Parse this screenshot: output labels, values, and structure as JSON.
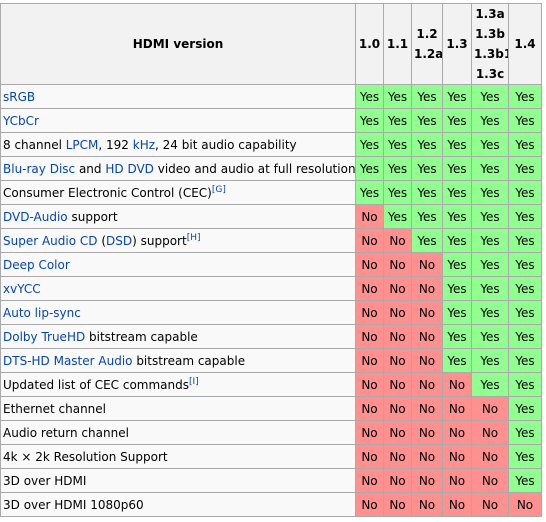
{
  "header": {
    "feature_label": "HDMI version",
    "versions": [
      [
        "1.0"
      ],
      [
        "1.1"
      ],
      [
        "1.2",
        "1.2a"
      ],
      [
        "1.3"
      ],
      [
        "1.3a",
        "1.3b",
        "1.3b1",
        "1.3c"
      ],
      [
        "1.4"
      ]
    ]
  },
  "colors": {
    "yes": "#90ff90",
    "no": "#ff9090",
    "link": "#0645ad"
  },
  "rows": [
    {
      "parts": [
        {
          "t": "sRGB",
          "link": true
        }
      ],
      "values": [
        "Yes",
        "Yes",
        "Yes",
        "Yes",
        "Yes",
        "Yes"
      ]
    },
    {
      "parts": [
        {
          "t": "YCbCr",
          "link": true
        }
      ],
      "values": [
        "Yes",
        "Yes",
        "Yes",
        "Yes",
        "Yes",
        "Yes"
      ]
    },
    {
      "parts": [
        {
          "t": "8 channel "
        },
        {
          "t": "LPCM",
          "link": true
        },
        {
          "t": ", 192 "
        },
        {
          "t": "kHz",
          "link": true
        },
        {
          "t": ", 24 bit audio capability"
        }
      ],
      "values": [
        "Yes",
        "Yes",
        "Yes",
        "Yes",
        "Yes",
        "Yes"
      ]
    },
    {
      "parts": [
        {
          "t": "Blu-ray Disc",
          "link": true
        },
        {
          "t": " and "
        },
        {
          "t": "HD DVD",
          "link": true
        },
        {
          "t": " video and audio at full resolution"
        },
        {
          "t": "[F]",
          "sup": true
        }
      ],
      "values": [
        "Yes",
        "Yes",
        "Yes",
        "Yes",
        "Yes",
        "Yes"
      ]
    },
    {
      "parts": [
        {
          "t": "Consumer Electronic Control (CEC)"
        },
        {
          "t": "[G]",
          "sup": true
        }
      ],
      "values": [
        "Yes",
        "Yes",
        "Yes",
        "Yes",
        "Yes",
        "Yes"
      ]
    },
    {
      "parts": [
        {
          "t": "DVD-Audio",
          "link": true
        },
        {
          "t": " support"
        }
      ],
      "values": [
        "No",
        "Yes",
        "Yes",
        "Yes",
        "Yes",
        "Yes"
      ]
    },
    {
      "parts": [
        {
          "t": "Super Audio CD",
          "link": true
        },
        {
          "t": " ("
        },
        {
          "t": "DSD",
          "link": true
        },
        {
          "t": ") support"
        },
        {
          "t": "[H]",
          "sup": true
        }
      ],
      "values": [
        "No",
        "No",
        "Yes",
        "Yes",
        "Yes",
        "Yes"
      ]
    },
    {
      "parts": [
        {
          "t": "Deep Color",
          "link": true
        }
      ],
      "values": [
        "No",
        "No",
        "No",
        "Yes",
        "Yes",
        "Yes"
      ]
    },
    {
      "parts": [
        {
          "t": "xvYCC",
          "link": true
        }
      ],
      "values": [
        "No",
        "No",
        "No",
        "Yes",
        "Yes",
        "Yes"
      ]
    },
    {
      "parts": [
        {
          "t": "Auto lip-sync",
          "link": true
        }
      ],
      "values": [
        "No",
        "No",
        "No",
        "Yes",
        "Yes",
        "Yes"
      ]
    },
    {
      "parts": [
        {
          "t": "Dolby TrueHD",
          "link": true
        },
        {
          "t": " bitstream capable"
        }
      ],
      "values": [
        "No",
        "No",
        "No",
        "Yes",
        "Yes",
        "Yes"
      ]
    },
    {
      "parts": [
        {
          "t": "DTS-HD Master Audio",
          "link": true
        },
        {
          "t": " bitstream capable"
        }
      ],
      "values": [
        "No",
        "No",
        "No",
        "Yes",
        "Yes",
        "Yes"
      ]
    },
    {
      "parts": [
        {
          "t": "Updated list of CEC commands"
        },
        {
          "t": "[I]",
          "sup": true
        }
      ],
      "values": [
        "No",
        "No",
        "No",
        "No",
        "Yes",
        "Yes"
      ]
    },
    {
      "parts": [
        {
          "t": "Ethernet channel"
        }
      ],
      "values": [
        "No",
        "No",
        "No",
        "No",
        "No",
        "Yes"
      ]
    },
    {
      "parts": [
        {
          "t": "Audio return channel"
        }
      ],
      "values": [
        "No",
        "No",
        "No",
        "No",
        "No",
        "Yes"
      ]
    },
    {
      "parts": [
        {
          "t": "4k × 2k Resolution Support"
        }
      ],
      "values": [
        "No",
        "No",
        "No",
        "No",
        "No",
        "Yes"
      ]
    },
    {
      "parts": [
        {
          "t": "3D over HDMI"
        }
      ],
      "values": [
        "No",
        "No",
        "No",
        "No",
        "No",
        "Yes"
      ]
    },
    {
      "parts": [
        {
          "t": "3D over HDMI 1080p60"
        }
      ],
      "values": [
        "No",
        "No",
        "No",
        "No",
        "No",
        "No"
      ]
    }
  ]
}
